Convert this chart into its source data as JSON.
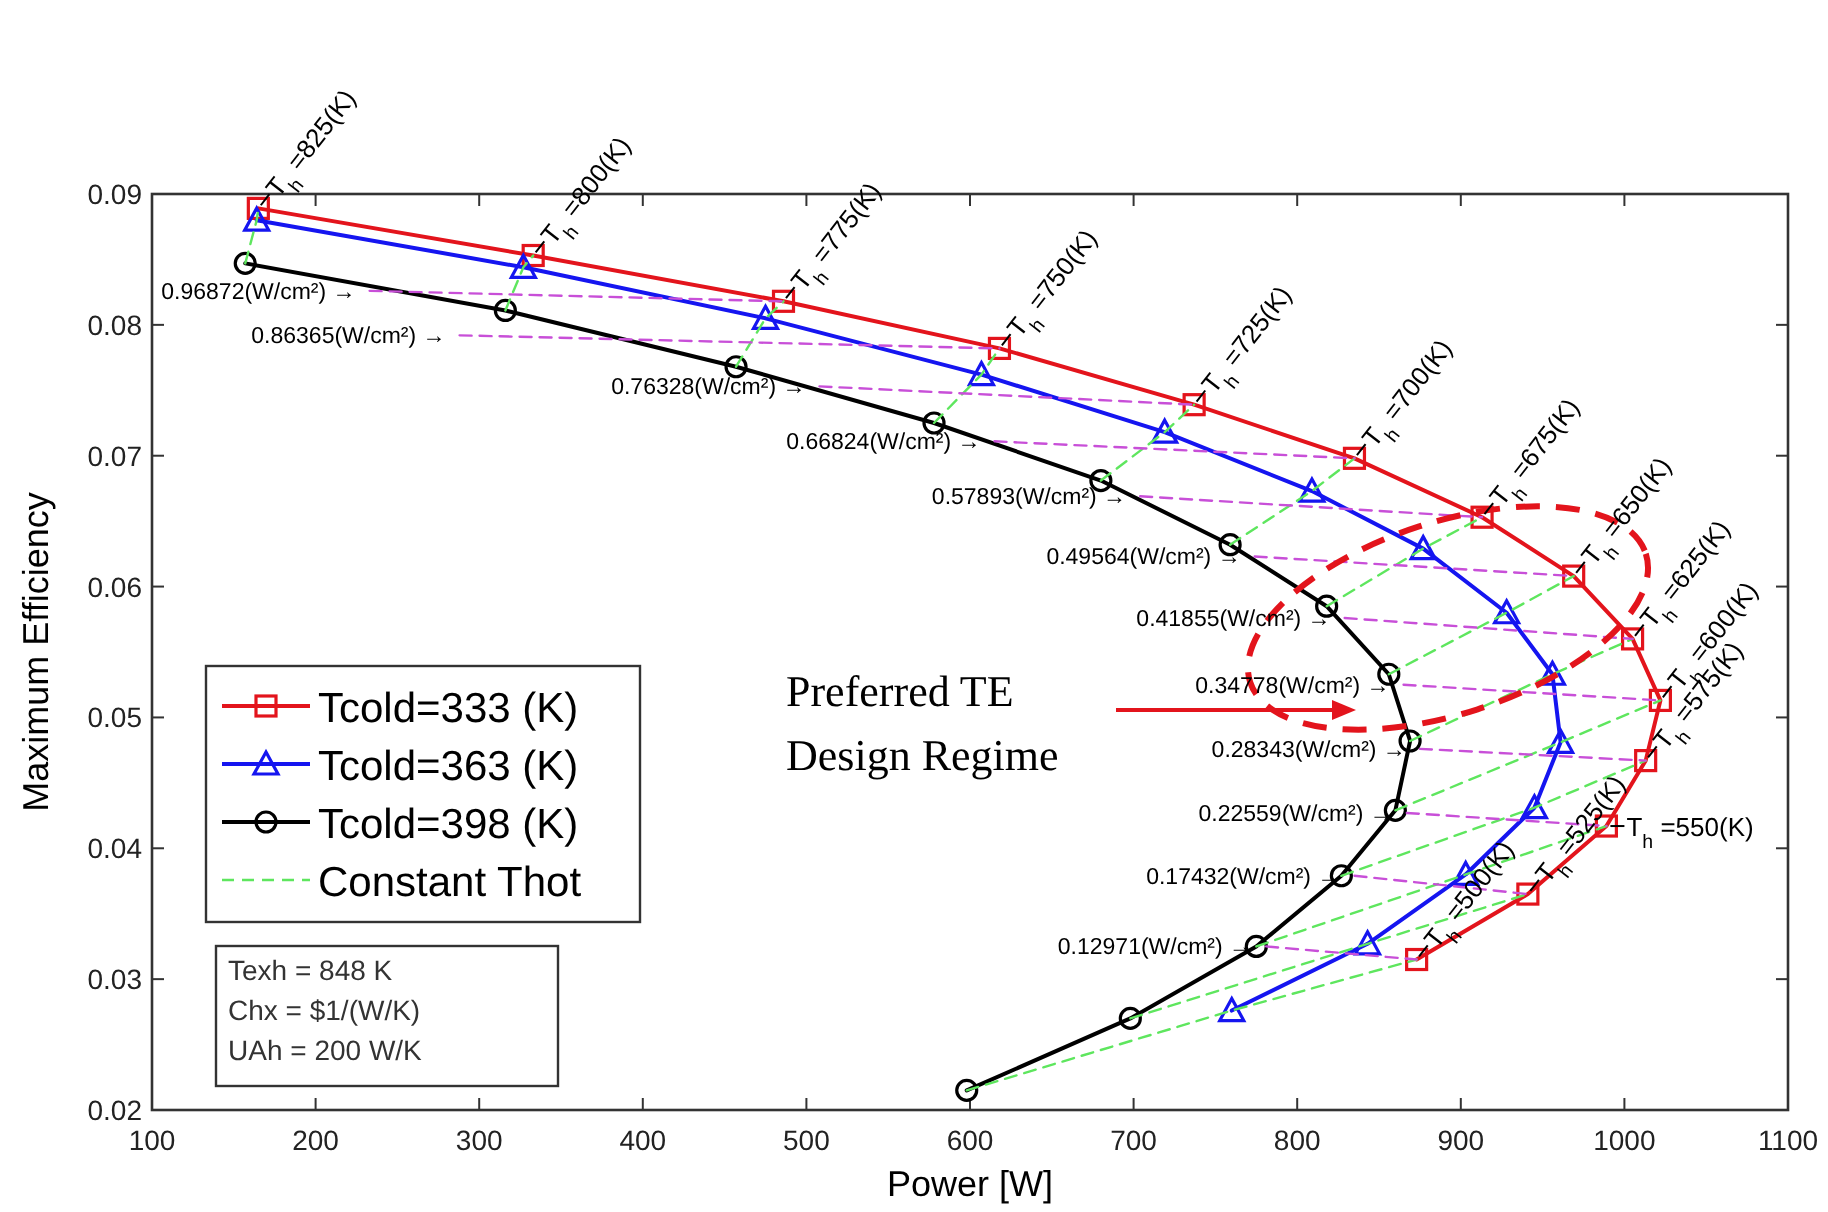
{
  "chart_data": {
    "type": "line",
    "xlabel": "Power [W]",
    "ylabel": "Maximum Efficiency",
    "xlim": [
      100,
      1100
    ],
    "xticks": [
      100,
      200,
      300,
      400,
      500,
      600,
      700,
      800,
      900,
      1000,
      1100
    ],
    "ylim": [
      0.02,
      0.09
    ],
    "yticks": [
      0.02,
      0.03,
      0.04,
      0.05,
      0.06,
      0.07,
      0.08,
      0.09
    ],
    "grid": false,
    "legend": "left",
    "series": [
      {
        "name": "Tcold=333 (K)",
        "color": "#e3141c",
        "marker": "square",
        "line_style": "solid",
        "x": [
          165,
          333,
          486,
          618,
          737,
          835,
          913,
          969,
          1005,
          1022,
          1013,
          989,
          941,
          873
        ],
        "values": [
          0.0889,
          0.0853,
          0.0818,
          0.0782,
          0.0739,
          0.0698,
          0.0653,
          0.0608,
          0.056,
          0.0513,
          0.0467,
          0.0417,
          0.0365,
          0.0315
        ]
      },
      {
        "name": "Tcold=363 (K)",
        "color": "#1515f0",
        "marker": "triangle",
        "line_style": "solid",
        "x": [
          164,
          327,
          475,
          607,
          719,
          809,
          877,
          928,
          956,
          961,
          945,
          903,
          843,
          760
        ],
        "values": [
          0.088,
          0.0844,
          0.0805,
          0.0762,
          0.0718,
          0.0673,
          0.0629,
          0.058,
          0.0533,
          0.0481,
          0.0431,
          0.038,
          0.0327,
          0.0276
        ]
      },
      {
        "name": "Tcold=398 (K)",
        "color": "#000000",
        "marker": "circle",
        "line_style": "solid",
        "x": [
          157,
          316,
          457,
          578,
          680,
          759,
          818,
          856,
          869,
          860,
          827,
          775,
          698,
          598
        ],
        "values": [
          0.0847,
          0.0811,
          0.0768,
          0.0725,
          0.0681,
          0.0632,
          0.0585,
          0.0533,
          0.0482,
          0.0429,
          0.0379,
          0.0325,
          0.027,
          0.0215
        ]
      },
      {
        "name": "Constant Thot",
        "color": "#5ee65e",
        "marker": "none",
        "line_style": "dashed",
        "x": [
          157,
          164,
          165,
          null,
          316,
          327,
          333,
          null,
          457,
          475,
          486,
          null,
          578,
          607,
          618,
          null,
          680,
          719,
          737,
          null,
          759,
          809,
          835,
          null,
          818,
          877,
          913,
          null,
          856,
          928,
          969,
          null,
          869,
          956,
          1005,
          null,
          860,
          961,
          1022,
          null,
          827,
          945,
          1013,
          null,
          775,
          903,
          989,
          null,
          698,
          843,
          941,
          null,
          598,
          760,
          873
        ],
        "values": [
          0.0847,
          0.088,
          0.0889,
          null,
          0.0811,
          0.0844,
          0.0853,
          null,
          0.0768,
          0.0805,
          0.0818,
          null,
          0.0725,
          0.0762,
          0.0782,
          null,
          0.0681,
          0.0718,
          0.0739,
          null,
          0.0632,
          0.0673,
          0.0698,
          null,
          0.0585,
          0.0629,
          0.0653,
          null,
          0.0533,
          0.058,
          0.0608,
          null,
          0.0482,
          0.0533,
          0.056,
          null,
          0.0429,
          0.0481,
          0.0513,
          null,
          0.0379,
          0.0431,
          0.0467,
          null,
          0.0325,
          0.038,
          0.0417,
          null,
          0.027,
          0.0327,
          0.0365,
          null,
          0.0215,
          0.0276,
          0.0315
        ]
      },
      {
        "color": "#c84fd8",
        "marker": "none",
        "line_style": "dashed",
        "x": [
          233,
          486,
          null,
          288,
          618,
          null,
          508,
          737,
          null,
          615,
          835,
          null,
          704,
          913,
          null,
          774,
          969,
          null,
          829,
          1005,
          null,
          865,
          1022,
          null,
          875,
          1013,
          null,
          867,
          989,
          null,
          835,
          941,
          null,
          781,
          873
        ],
        "values": [
          0.0826,
          0.0818,
          null,
          0.0792,
          0.0782,
          null,
          0.0753,
          0.0739,
          null,
          0.0711,
          0.0698,
          null,
          0.0669,
          0.0653,
          null,
          0.0623,
          0.0608,
          null,
          0.0576,
          0.056,
          null,
          0.0525,
          0.0513,
          null,
          0.0476,
          0.0467,
          null,
          0.0427,
          0.0417,
          null,
          0.0379,
          0.0365,
          null,
          0.0325,
          0.0315
        ]
      }
    ],
    "annotations": [
      {
        "text": "T$_{h}$ =825(K)",
        "x": 165,
        "y": 0.0889
      },
      {
        "text": "T$_{h}$ =800(K)",
        "x": 333,
        "y": 0.0853
      },
      {
        "text": "T$_{h}$ =775(K)",
        "x": 486,
        "y": 0.0818
      },
      {
        "text": "T$_{h}$ =750(K)",
        "x": 618,
        "y": 0.0782
      },
      {
        "text": "T$_{h}$ =725(K)",
        "x": 737,
        "y": 0.0739
      },
      {
        "text": "T$_{h}$ =700(K)",
        "x": 835,
        "y": 0.0698
      },
      {
        "text": "T$_{h}$ =675(K)",
        "x": 913,
        "y": 0.0653
      },
      {
        "text": "T$_{h}$ =650(K)",
        "x": 969,
        "y": 0.0608
      },
      {
        "text": "T$_{h}$ =625(K)",
        "x": 1005,
        "y": 0.056
      },
      {
        "text": "T$_{h}$ =600(K)",
        "x": 1022,
        "y": 0.0513
      },
      {
        "text": "T$_{h}$ =575(K)",
        "x": 1013,
        "y": 0.0467
      },
      {
        "text": "T$_{h}$ =550(K)",
        "x": 989,
        "y": 0.0417
      },
      {
        "text": "T$_{h}$ =525(K)",
        "x": 941,
        "y": 0.0365
      },
      {
        "text": "T$_{h}$ =500(K)",
        "x": 873,
        "y": 0.0315
      },
      {
        "text": "0.96872(W/cm²) →",
        "x": 233,
        "y": 0.0826
      },
      {
        "text": "0.86365(W/cm²) →",
        "x": 288,
        "y": 0.0792
      },
      {
        "text": "0.76328(W/cm²) →",
        "x": 508,
        "y": 0.0753
      },
      {
        "text": "0.66824(W/cm²) →",
        "x": 615,
        "y": 0.0711
      },
      {
        "text": "0.57893(W/cm²) →",
        "x": 704,
        "y": 0.0669
      },
      {
        "text": "0.49564(W/cm²) →",
        "x": 774,
        "y": 0.0623
      },
      {
        "text": "0.41855(W/cm²) →",
        "x": 829,
        "y": 0.0576
      },
      {
        "text": "0.34778(W/cm²) →",
        "x": 865,
        "y": 0.0525
      },
      {
        "text": "0.28343(W/cm²) →",
        "x": 875,
        "y": 0.0476
      },
      {
        "text": "0.22559(W/cm²) →",
        "x": 867,
        "y": 0.0427
      },
      {
        "text": "0.17432(W/cm²) →",
        "x": 835,
        "y": 0.0379
      },
      {
        "text": "0.12971(W/cm²) →",
        "x": 781,
        "y": 0.0325
      },
      "Preferred TE\nDesign Regime",
      "Texh = 848 K",
      "Chx = $1/(W/K)",
      "UAh = 200 W/K"
    ]
  }
}
